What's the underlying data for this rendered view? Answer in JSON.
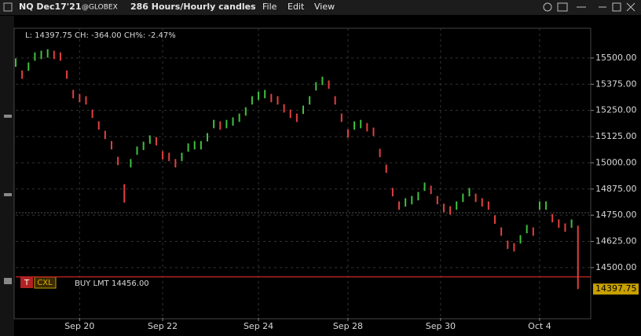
{
  "header": {
    "symbol": "NQ Dec17'21",
    "exchange": "@GLOBEX",
    "period": "286 Hours/Hourly candles",
    "menus": [
      "File",
      "Edit",
      "View"
    ]
  },
  "info": "L: 14397.75 CH: -364.00 CH%: -2.47%",
  "order": {
    "buttons": [
      "T",
      "CXL"
    ],
    "label": "BUY LMT 14456.00",
    "price": 14456
  },
  "chart_data": {
    "type": "ohlc",
    "up_color": "#3fbf3f",
    "down_color": "#e04040",
    "high": [
      15498,
      15441,
      15479,
      15527,
      15535,
      15542,
      15535,
      15527,
      15441,
      15348,
      15329,
      15318,
      15254,
      15198,
      15153,
      15104,
      15029,
      14898,
      15018,
      15078,
      15101,
      15131,
      15123,
      15056,
      15048,
      15018,
      15048,
      15093,
      15104,
      15104,
      15142,
      15205,
      15198,
      15205,
      15217,
      15235,
      15265,
      15318,
      15340,
      15348,
      15329,
      15318,
      15280,
      15254,
      15235,
      15273,
      15318,
      15385,
      15411,
      15393,
      15318,
      15235,
      15160,
      15198,
      15205,
      15190,
      15168,
      15067,
      14992,
      14880,
      14816,
      14831,
      14842,
      14861,
      14906,
      14891,
      14842,
      14805,
      14793,
      14816,
      14853,
      14880,
      14853,
      14831,
      14816,
      14749,
      14692,
      14629,
      14617,
      14655,
      14704,
      14692,
      14816,
      14816,
      14756,
      14730,
      14711,
      14730,
      14700
    ],
    "low": [
      15458,
      15401,
      15439,
      15487,
      15495,
      15502,
      15495,
      15487,
      15401,
      15308,
      15289,
      15278,
      15214,
      15158,
      15113,
      15064,
      14989,
      14810,
      14978,
      15038,
      15061,
      15091,
      15083,
      15016,
      15008,
      14978,
      15008,
      15053,
      15064,
      15064,
      15102,
      15165,
      15158,
      15165,
      15177,
      15195,
      15225,
      15278,
      15300,
      15308,
      15289,
      15278,
      15240,
      15214,
      15195,
      15233,
      15278,
      15345,
      15371,
      15353,
      15278,
      15195,
      15120,
      15158,
      15165,
      15150,
      15128,
      15027,
      14952,
      14840,
      14776,
      14791,
      14802,
      14821,
      14866,
      14851,
      14802,
      14765,
      14753,
      14776,
      14813,
      14840,
      14813,
      14791,
      14776,
      14709,
      14652,
      14589,
      14577,
      14615,
      14664,
      14652,
      14776,
      14776,
      14716,
      14690,
      14671,
      14690,
      14397.75
    ],
    "last_price": {
      "value": 14397.75,
      "label": "14397.75"
    },
    "ref_line": 14762,
    "xlim": [
      0,
      90
    ],
    "xticks": [
      {
        "value": 10,
        "label": "Sep 20"
      },
      {
        "value": 23,
        "label": "Sep 22"
      },
      {
        "value": 38,
        "label": "Sep 24"
      },
      {
        "value": 52,
        "label": "Sep 28"
      },
      {
        "value": 66.5,
        "label": "Sep 30"
      },
      {
        "value": 82,
        "label": "Oct 4"
      }
    ],
    "ylim": [
      14260,
      15642
    ],
    "yticks": [
      {
        "value": 15500,
        "label": "15500.00"
      },
      {
        "value": 15375,
        "label": "15375.00"
      },
      {
        "value": 15250,
        "label": "15250.00"
      },
      {
        "value": 15125,
        "label": "15125.00"
      },
      {
        "value": 15000,
        "label": "15000.00"
      },
      {
        "value": 14875,
        "label": "14875.00"
      },
      {
        "value": 14750,
        "label": "14750.00"
      },
      {
        "value": 14625,
        "label": "14625.00"
      },
      {
        "value": 14500,
        "label": "14500.00"
      }
    ],
    "grid": true
  }
}
